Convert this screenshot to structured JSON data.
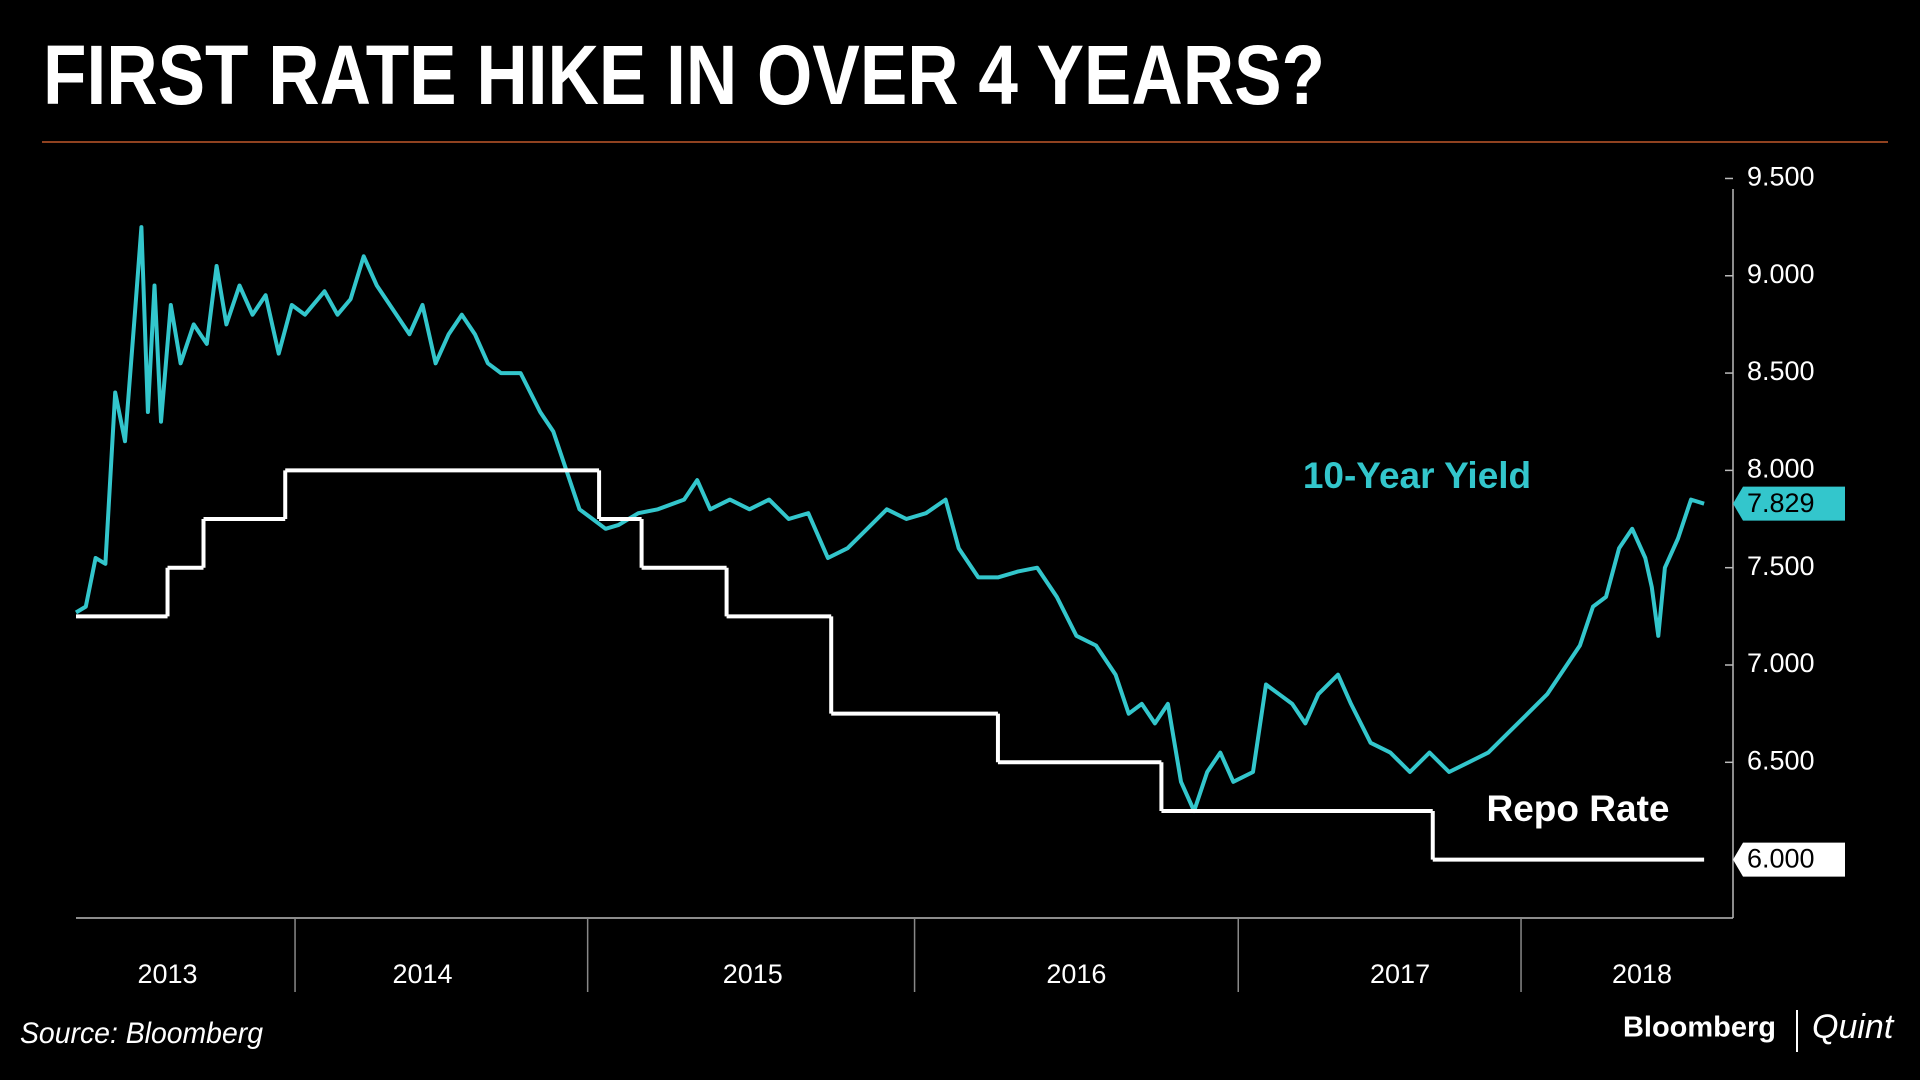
{
  "title": "FIRST RATE HIKE IN OVER 4 YEARS?",
  "source": "Source: Bloomberg",
  "logo": {
    "left": "Bloomberg",
    "right": "Quint"
  },
  "chart_data": {
    "type": "line",
    "x": [
      2013.44,
      2013.47,
      2013.5,
      2013.53,
      2013.56,
      2013.59,
      2013.62,
      2013.64,
      2013.66,
      2013.68,
      2013.7,
      2013.73,
      2013.76,
      2013.8,
      2013.84,
      2013.87,
      2013.9,
      2013.94,
      2013.98,
      2014.02,
      2014.06,
      2014.1,
      2014.14,
      2014.2,
      2014.24,
      2014.28,
      2014.32,
      2014.36,
      2014.4,
      2014.46,
      2014.5,
      2014.54,
      2014.58,
      2014.62,
      2014.66,
      2014.7,
      2014.74,
      2014.8,
      2014.86,
      2014.9,
      2014.94,
      2014.98,
      2015.02,
      2015.06,
      2015.1,
      2015.16,
      2015.22,
      2015.3,
      2015.34,
      2015.38,
      2015.44,
      2015.5,
      2015.56,
      2015.62,
      2015.68,
      2015.74,
      2015.8,
      2015.86,
      2015.92,
      2015.98,
      2016.04,
      2016.1,
      2016.14,
      2016.2,
      2016.26,
      2016.32,
      2016.38,
      2016.44,
      2016.5,
      2016.56,
      2016.62,
      2016.66,
      2016.7,
      2016.74,
      2016.78,
      2016.82,
      2016.86,
      2016.9,
      2016.94,
      2016.98,
      2017.04,
      2017.08,
      2017.12,
      2017.16,
      2017.2,
      2017.24,
      2017.3,
      2017.34,
      2017.4,
      2017.46,
      2017.52,
      2017.58,
      2017.64,
      2017.7,
      2017.76,
      2017.82,
      2017.88,
      2017.94,
      2018.0,
      2018.04,
      2018.08,
      2018.12,
      2018.16,
      2018.2,
      2018.24,
      2018.26,
      2018.28,
      2018.3,
      2018.34,
      2018.38,
      2018.42
    ],
    "series": [
      {
        "name": "10-Year Yield",
        "color": "#33c6cc",
        "values": [
          7.27,
          7.3,
          7.55,
          7.52,
          8.4,
          8.15,
          8.8,
          9.25,
          8.3,
          8.95,
          8.25,
          8.85,
          8.55,
          8.75,
          8.65,
          9.05,
          8.75,
          8.95,
          8.8,
          8.9,
          8.6,
          8.85,
          8.8,
          8.92,
          8.8,
          8.88,
          9.1,
          8.95,
          8.85,
          8.7,
          8.85,
          8.55,
          8.7,
          8.8,
          8.7,
          8.55,
          8.5,
          8.5,
          8.3,
          8.2,
          8.0,
          7.8,
          7.75,
          7.7,
          7.72,
          7.78,
          7.8,
          7.85,
          7.95,
          7.8,
          7.85,
          7.8,
          7.85,
          7.75,
          7.78,
          7.55,
          7.6,
          7.7,
          7.8,
          7.75,
          7.78,
          7.85,
          7.6,
          7.45,
          7.45,
          7.48,
          7.5,
          7.35,
          7.15,
          7.1,
          6.95,
          6.75,
          6.8,
          6.7,
          6.8,
          6.4,
          6.25,
          6.45,
          6.55,
          6.4,
          6.45,
          6.9,
          6.85,
          6.8,
          6.7,
          6.85,
          6.95,
          6.8,
          6.6,
          6.55,
          6.45,
          6.55,
          6.45,
          6.5,
          6.55,
          6.65,
          6.75,
          6.85,
          7.0,
          7.1,
          7.3,
          7.35,
          7.6,
          7.7,
          7.55,
          7.4,
          7.15,
          7.5,
          7.65,
          7.85,
          7.829
        ]
      },
      {
        "name": "Repo Rate",
        "color": "#ffffff",
        "step": "post",
        "x": [
          2013.44,
          2013.72,
          2013.83,
          2014.08,
          2015.04,
          2015.17,
          2015.43,
          2015.75,
          2016.26,
          2016.76,
          2017.59,
          2018.42
        ],
        "values": [
          7.25,
          7.5,
          7.75,
          8.0,
          7.75,
          7.5,
          7.25,
          6.75,
          6.5,
          6.25,
          6.0,
          6.0
        ],
        "value_labels": [
          null,
          null,
          null,
          null,
          null,
          null,
          null,
          null,
          null,
          null,
          null,
          "6.000"
        ]
      }
    ],
    "xlim": [
      2013.44,
      2018.49
    ],
    "xticks": [
      {
        "value": 2013.72,
        "label": "2013"
      },
      {
        "value": 2014.5,
        "label": "2014"
      },
      {
        "value": 2015.51,
        "label": "2015"
      },
      {
        "value": 2016.5,
        "label": "2016"
      },
      {
        "value": 2017.49,
        "label": "2017"
      },
      {
        "value": 2018.23,
        "label": "2018"
      }
    ],
    "ylim": [
      5.7,
      9.6
    ],
    "yticks": [
      {
        "value": 6.5,
        "label": "6.500"
      },
      {
        "value": 7.0,
        "label": "7.000"
      },
      {
        "value": 7.5,
        "label": "7.500"
      },
      {
        "value": 8.0,
        "label": "8.000"
      },
      {
        "value": 8.5,
        "label": "8.500"
      },
      {
        "value": 9.0,
        "label": "9.000"
      },
      {
        "value": 9.5,
        "label": "9.500"
      }
    ],
    "grid": false
  }
}
